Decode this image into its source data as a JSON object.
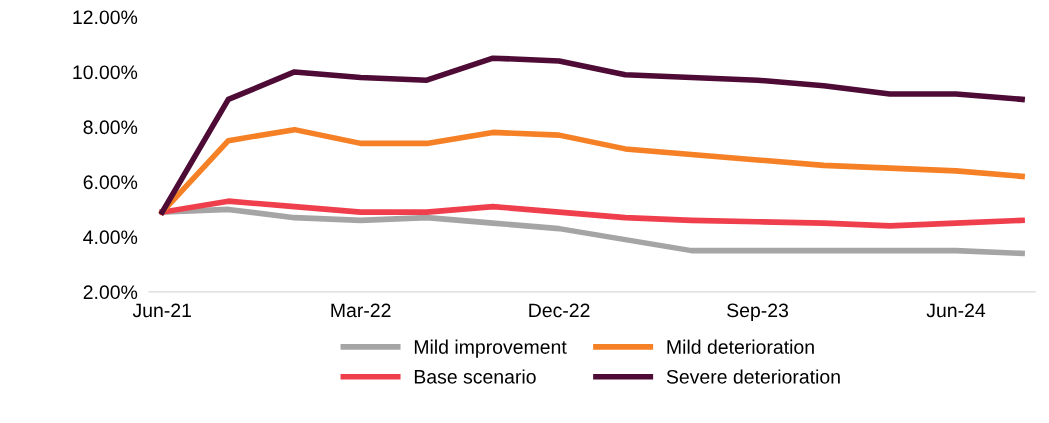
{
  "chart_data": {
    "type": "line",
    "categories": [
      "Jun-21",
      null,
      null,
      "Mar-22",
      null,
      null,
      "Dec-22",
      null,
      null,
      "Sep-23",
      null,
      null,
      "Jun-24",
      null
    ],
    "series": [
      {
        "name": "Mild improvement",
        "color": "#a5a5a5",
        "values": [
          4.9,
          5.0,
          4.7,
          4.6,
          4.7,
          4.5,
          4.3,
          3.9,
          3.5,
          3.5,
          3.5,
          3.5,
          3.5,
          3.4
        ]
      },
      {
        "name": "Base scenario",
        "color": "#ef3f4c",
        "values": [
          4.9,
          5.3,
          5.1,
          4.9,
          4.9,
          5.1,
          4.9,
          4.7,
          4.6,
          4.55,
          4.5,
          4.4,
          4.5,
          4.6
        ]
      },
      {
        "name": "Mild deterioration",
        "color": "#f58025",
        "values": [
          4.9,
          7.5,
          7.9,
          7.4,
          7.4,
          7.8,
          7.7,
          7.2,
          7.0,
          6.8,
          6.6,
          6.5,
          6.4,
          6.2
        ]
      },
      {
        "name": "Severe deterioration",
        "color": "#4e0b35",
        "values": [
          4.9,
          9.0,
          10.0,
          9.8,
          9.7,
          10.5,
          10.4,
          9.9,
          9.8,
          9.7,
          9.5,
          9.2,
          9.2,
          9.0
        ]
      }
    ],
    "ylim": [
      2,
      12
    ],
    "yticks": [
      {
        "value": 2,
        "label": "2.00%"
      },
      {
        "value": 4,
        "label": "4.00%"
      },
      {
        "value": 6,
        "label": "6.00%"
      },
      {
        "value": 8,
        "label": "8.00%"
      },
      {
        "value": 10,
        "label": "10.00%"
      },
      {
        "value": 12,
        "label": "12.00%"
      }
    ],
    "grid": false,
    "legend": "bottom",
    "marker": "none",
    "line_style": "solid"
  }
}
